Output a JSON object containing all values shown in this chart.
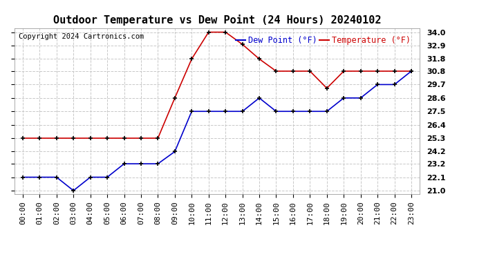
{
  "title": "Outdoor Temperature vs Dew Point (24 Hours) 20240102",
  "copyright": "Copyright 2024 Cartronics.com",
  "legend_dew": "Dew Point (°F)",
  "legend_temp": "Temperature (°F)",
  "hours": [
    "00:00",
    "01:00",
    "02:00",
    "03:00",
    "04:00",
    "05:00",
    "06:00",
    "07:00",
    "08:00",
    "09:00",
    "10:00",
    "11:00",
    "12:00",
    "13:00",
    "14:00",
    "15:00",
    "16:00",
    "17:00",
    "18:00",
    "19:00",
    "20:00",
    "21:00",
    "22:00",
    "23:00"
  ],
  "temperature": [
    25.3,
    25.3,
    25.3,
    25.3,
    25.3,
    25.3,
    25.3,
    25.3,
    25.3,
    28.6,
    31.8,
    34.0,
    34.0,
    33.0,
    31.8,
    30.8,
    30.8,
    30.8,
    29.4,
    30.8,
    30.8,
    30.8,
    30.8,
    30.8
  ],
  "dew_point": [
    22.1,
    22.1,
    22.1,
    21.0,
    22.1,
    22.1,
    23.2,
    23.2,
    23.2,
    24.2,
    27.5,
    27.5,
    27.5,
    27.5,
    28.6,
    27.5,
    27.5,
    27.5,
    27.5,
    28.6,
    28.6,
    29.7,
    29.7,
    30.8
  ],
  "ylim_min": 21.0,
  "ylim_max": 34.0,
  "yticks": [
    21.0,
    22.1,
    23.2,
    24.2,
    25.3,
    26.4,
    27.5,
    28.6,
    29.7,
    30.8,
    31.8,
    32.9,
    34.0
  ],
  "ytick_labels": [
    "21.0",
    "22.1",
    "23.2",
    "24.2",
    "25.3",
    "26.4",
    "27.5",
    "28.6",
    "29.7",
    "30.8",
    "31.8",
    "32.9",
    "34.0"
  ],
  "temp_color": "#cc0000",
  "dew_color": "#0000cc",
  "bg_color": "#ffffff",
  "grid_color": "#c8c8c8",
  "title_color": "#000000",
  "copyright_color": "#000000",
  "title_fontsize": 11,
  "tick_fontsize": 8,
  "legend_fontsize": 8.5,
  "copyright_fontsize": 7.5
}
